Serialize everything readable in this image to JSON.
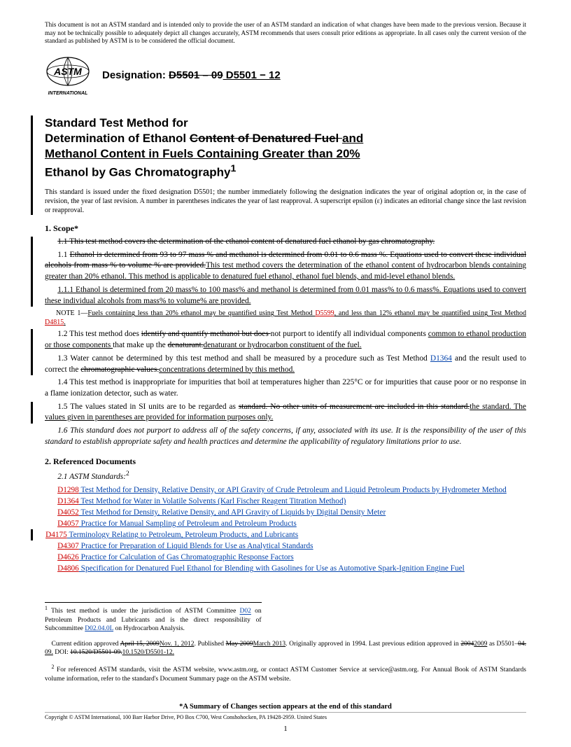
{
  "disclaimer": "This document is not an ASTM standard and is intended only to provide the user of an ASTM standard an indication of what changes have been made to the previous version. Because it may not be technically possible to adequately depict all changes accurately, ASTM recommends that users consult prior editions as appropriate. In all cases only the current version of the standard as published by ASTM is to be considered the official document.",
  "logo_text_top": "ASTM",
  "logo_text_bottom": "INTERNATIONAL",
  "designation_label": "Designation: ",
  "designation_old": "D5501 – 09",
  "designation_new": " D5501 − 12",
  "title_line1": "Standard Test Method for",
  "title_line2a": "Determination of Ethanol ",
  "title_line2_strike": "Content of Denatured Fuel ",
  "title_line2_uline": "and",
  "title_line3_uline": "Methanol Content in Fuels Containing Greater than 20%",
  "title_line4": "Ethanol by Gas Chromatography",
  "title_sup": "1",
  "issued": "This standard is issued under the fixed designation D5501; the number immediately following the designation indicates the year of original adoption or, in the case of revision, the year of last revision. A number in parentheses indicates the year of last reapproval. A superscript epsilon (ε) indicates an editorial change since the last revision or reapproval.",
  "scope_head": "1. Scope*",
  "p1_1_strike": "1.1 This test method covers the determination of the ethanol content of denatured fuel ethanol by gas chromatography.",
  "p1_1_a_strike": "Ethanol is determined from 93 to 97 mass % and methanol is determined from 0.01 to 0.6 mass %. Equations used to convert these individual alcohols from mass % to volume % are provided.",
  "p1_1_b_uline": "This test method covers the determination of the ethanol content of hydrocarbon blends containing greater than 20% ethanol. This method is applicable to denatured fuel ethanol, ethanol fuel blends, and mid-level ethanol blends.",
  "p1_1_1_uline": "1.1.1 Ethanol is determined from 20 mass% to 100 mass% and methanol is determined from 0.01 mass% to 0.6 mass%. Equations used to convert these individual alcohols from mass% to volume% are provided.",
  "note1_a": "NOTE 1—",
  "note1_b": "Fuels containing less than 20% ethanol may be quantified using Test Method ",
  "note1_link1": "D5599",
  "note1_c": ", and less than 12% ethanol may be quantified using Test Method ",
  "note1_link2": "D4815",
  "note1_d": ".",
  "p1_2_a": "1.2 This test method does ",
  "p1_2_strike": "identify and quantify methanol but does ",
  "p1_2_b": "not purport to identify all individual components ",
  "p1_2_uline1": "common to ethanol production or those components ",
  "p1_2_c": "that make up the ",
  "p1_2_strike2": "denaturant.",
  "p1_2_uline2": "denaturant or hydrocarbon constituent of the fuel.",
  "p1_3_a": "1.3 Water cannot be determined by this test method and shall be measured by a procedure such as Test Method ",
  "p1_3_link": "D1364",
  "p1_3_b": " and the result used to correct the ",
  "p1_3_strike": "chromatographic values.",
  "p1_3_uline": "concentrations determined by this method.",
  "p1_4": "1.4 This test method is inappropriate for impurities that boil at temperatures higher than 225°C or for impurities that cause poor or no response in a flame ionization detector, such as water.",
  "p1_5_a": "1.5 The values stated in SI units are to be regarded as ",
  "p1_5_strike": "standard. No other units of measurement are included in this standard.",
  "p1_5_uline": "the standard. The values given in parentheses are provided for information purposes only.",
  "p1_6": "1.6 This standard does not purport to address all of the safety concerns, if any, associated with its use. It is the responsibility of the user of this standard to establish appropriate safety and health practices and determine the applicability of regulatory limitations prior to use.",
  "ref_head": "2. Referenced Documents",
  "ref_sub": "2.1 ASTM Standards:",
  "ref_sup": "2",
  "refs": [
    {
      "code": "D1298",
      "text": "Test Method for Density, Relative Density, or API Gravity of Crude Petroleum and Liquid Petroleum Products by Hydrometer Method",
      "uline": false
    },
    {
      "code": "D1364",
      "text": "Test Method for Water in Volatile Solvents (Karl Fischer Reagent Titration Method)",
      "uline": false
    },
    {
      "code": "D4052",
      "text": "Test Method for Density, Relative Density, and API Gravity of Liquids by Digital Density Meter",
      "uline": false
    },
    {
      "code": "D4057",
      "text": "Practice for Manual Sampling of Petroleum and Petroleum Products",
      "uline": false
    },
    {
      "code": "D4175",
      "text": "Terminology Relating to Petroleum, Petroleum Products, and Lubricants",
      "uline": true
    },
    {
      "code": "D4307",
      "text": "Practice for Preparation of Liquid Blends for Use as Analytical Standards",
      "uline": false
    },
    {
      "code": "D4626",
      "text": "Practice for Calculation of Gas Chromatographic Response Factors",
      "uline": false
    },
    {
      "code": "D4806",
      "text": "Specification for Denatured Fuel Ethanol for Blending with Gasolines for Use as Automotive Spark-Ignition Engine Fuel",
      "uline": false
    }
  ],
  "fn1_a": " This test method is under the jurisdiction of ASTM Committee ",
  "fn1_link1": "D02",
  "fn1_b": " on Petroleum Products and Lubricants and is the direct responsibility of Subcommittee ",
  "fn1_link2": "D02.04.0L",
  "fn1_c": " on Hydrocarbon Analysis.",
  "fn1d_a": "Current edition approved ",
  "fn1d_strike1": "April 15, 2009",
  "fn1d_uline1": "Nov. 1, 2012",
  "fn1d_b": ". Published ",
  "fn1d_strike2": "May 2009",
  "fn1d_uline2": "March 2013",
  "fn1d_c": ". Originally approved in 1994. Last previous edition approved in ",
  "fn1d_strike3": "2004",
  "fn1d_uline3": "2009",
  "fn1d_d": " as D5501–",
  "fn1d_strike4": "04.",
  "fn1d_uline4": " 09.",
  "fn1d_e": " DOI: ",
  "fn1d_strike5": "10.1520/D5501-09.",
  "fn1d_uline5": "10.1520/D5501-12.",
  "fn2": " For referenced ASTM standards, visit the ASTM website, www.astm.org, or contact ASTM Customer Service at service@astm.org. For Annual Book of ASTM Standards volume information, refer to the standard's Document Summary page on the ASTM website.",
  "summary": "*A Summary of Changes section appears at the end of this standard",
  "copyright": "Copyright © ASTM International, 100 Barr Harbor Drive, PO Box C700, West Conshohocken, PA 19428-2959. United States",
  "page_num": "1"
}
